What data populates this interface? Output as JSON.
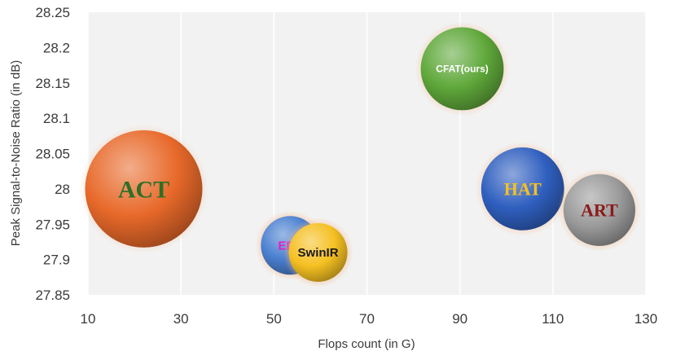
{
  "chart_data": {
    "type": "scatter",
    "xlabel": "Flops count (in G)",
    "ylabel": "Peak Signal-to-Noise Ratio (in dB)",
    "xlim": [
      10,
      130
    ],
    "ylim": [
      27.85,
      28.25
    ],
    "xticks": [
      "10",
      "30",
      "50",
      "70",
      "90",
      "110",
      "130"
    ],
    "yticks": [
      "27.85",
      "27.9",
      "27.95",
      "28",
      "28.05",
      "28.1",
      "28.15",
      "28.2",
      "28.25"
    ],
    "grid": "vertical",
    "points": [
      {
        "label": "ACT",
        "x": 22.0,
        "y": 28.0,
        "size": 4.0,
        "color": "#e8692a",
        "label_color": "#2e6f27",
        "label_font": "serif"
      },
      {
        "label": "EDT",
        "x": 53.5,
        "y": 27.92,
        "size": 1.0,
        "color": "#4a7fd0",
        "label_color": "#e21ec8",
        "label_font": "sans"
      },
      {
        "label": "SwinIR",
        "x": 59.5,
        "y": 27.91,
        "size": 1.0,
        "color": "#f5c022",
        "label_color": "#1a1a1a",
        "label_font": "sans"
      },
      {
        "label": "CFAT(ours)",
        "x": 90.5,
        "y": 28.17,
        "size": 2.0,
        "color": "#5fa83a",
        "label_color": "#ffffff",
        "label_font": "sans"
      },
      {
        "label": "HAT",
        "x": 103.5,
        "y": 28.0,
        "size": 2.0,
        "color": "#2f5fbf",
        "label_color": "#f5c022",
        "label_font": "serif"
      },
      {
        "label": "ART",
        "x": 120.0,
        "y": 27.97,
        "size": 1.5,
        "color": "#9a9a9a",
        "label_color": "#8b1a1a",
        "label_font": "serif"
      }
    ]
  }
}
